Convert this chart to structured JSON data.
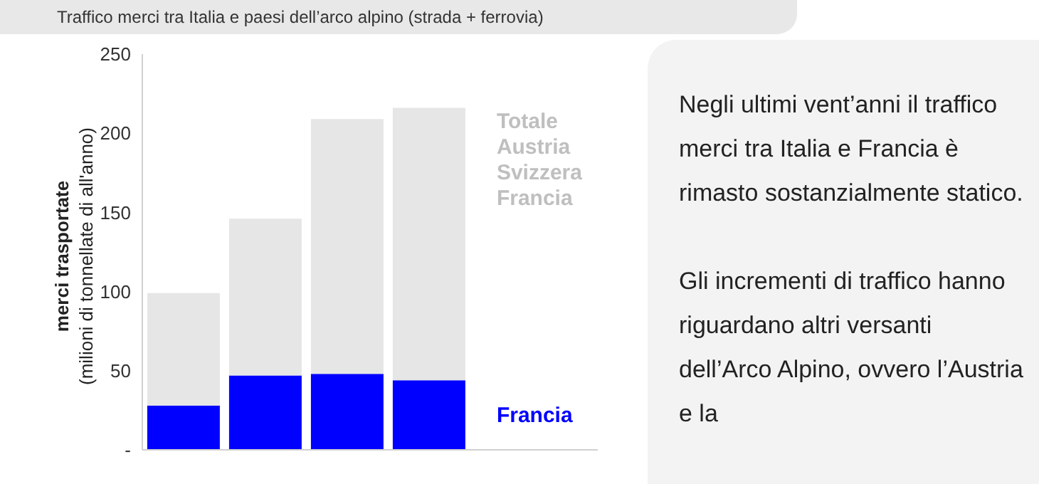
{
  "chart_data": {
    "type": "bar",
    "title": "Traffico merci tra Italia e paesi dell’arco alpino (strada + ferrovia)",
    "ylabel": "merci trasportate\n(milioni di tonnellate di all'anno)",
    "categories": [
      null,
      null,
      null,
      null
    ],
    "stacked": true,
    "series": [
      {
        "name": "Francia",
        "color": "#0000ff",
        "values": [
          28,
          47,
          48,
          44
        ]
      },
      {
        "name": "Totale Austria Svizzera Francia",
        "color": "#e6e6e6",
        "values": [
          71,
          99,
          161,
          172
        ]
      }
    ],
    "ylim": [
      0,
      250
    ],
    "yticks": [
      {
        "value": 0,
        "label": "-"
      },
      50,
      100,
      150,
      200,
      250
    ],
    "tick_labels": "y",
    "annotations": [
      "Negli ultimi vent’anni il traffico merci tra Italia e Francia è rimasto sostanzialmente statico.",
      "Gli incrementi di traffico hanno riguardano altri versanti dell’Arco Alpino, ovvero l’Austria e la"
    ]
  }
}
